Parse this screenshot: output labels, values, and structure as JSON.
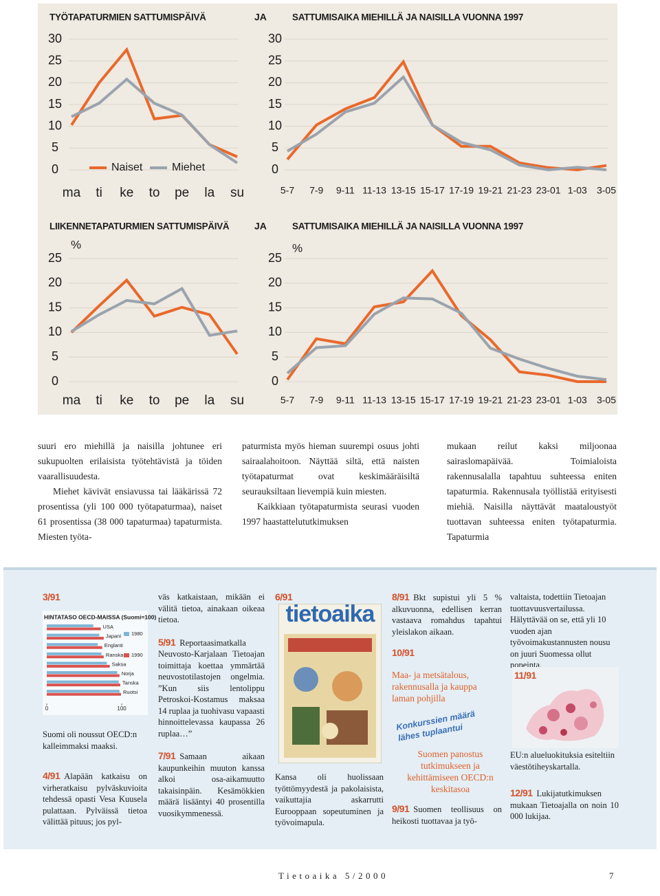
{
  "chart_data": [
    {
      "type": "line",
      "title": "TYÖTAPATURMIEN SATTUMISPÄIVÄ",
      "categories": [
        "ma",
        "ti",
        "ke",
        "to",
        "pe",
        "la",
        "su"
      ],
      "series": [
        {
          "name": "Naiset",
          "color": "#e8692c",
          "values": [
            10.3,
            20,
            27.6,
            11.7,
            12.5,
            5.8,
            3
          ]
        },
        {
          "name": "Miehet",
          "color": "#9aa3ad",
          "values": [
            12.2,
            15.3,
            20.8,
            15.3,
            12.6,
            5.8,
            1.6
          ]
        }
      ],
      "ylim": [
        0,
        30
      ],
      "yticks": [
        0,
        5,
        10,
        15,
        20,
        25,
        30
      ],
      "grid": true,
      "legend": "bottom"
    },
    {
      "type": "line",
      "title": "SATTUMISAIKA MIEHILLÄ JA NAISILLA VUONNA 1997",
      "categories": [
        "5-7",
        "7-9",
        "9-11",
        "11-13",
        "13-15",
        "15-17",
        "17-19",
        "19-21",
        "21-23",
        "23-01",
        "1-03",
        "3-05"
      ],
      "series": [
        {
          "color": "#e8692c",
          "values": [
            2.4,
            10.3,
            14,
            16.6,
            24.8,
            10.3,
            5.4,
            5.4,
            1.6,
            0.5,
            0,
            1
          ]
        },
        {
          "color": "#9aa3ad",
          "values": [
            4.3,
            8.2,
            13.3,
            15.3,
            21.3,
            10.3,
            6.3,
            4.6,
            1.1,
            0,
            0.6,
            0
          ]
        }
      ],
      "ylim": [
        0,
        30
      ],
      "yticks": [
        0,
        5,
        10,
        15,
        20,
        25,
        30
      ],
      "grid": true
    },
    {
      "type": "line",
      "title": "LIIKENNETAPATURMIEN SATTUMISPÄIVÄ",
      "unit": "%",
      "categories": [
        "ma",
        "ti",
        "ke",
        "to",
        "pe",
        "la",
        "su"
      ],
      "series": [
        {
          "color": "#e8692c",
          "values": [
            10,
            15.4,
            20.6,
            13.3,
            15.1,
            13.6,
            5.6
          ]
        },
        {
          "color": "#9aa3ad",
          "values": [
            10.2,
            13.6,
            16.5,
            15.8,
            18.9,
            9.4,
            10.3
          ]
        }
      ],
      "ylim": [
        0,
        25
      ],
      "yticks": [
        0,
        5,
        10,
        15,
        20,
        25
      ],
      "grid": true
    },
    {
      "type": "line",
      "title": "SATTUMISAIKA MIEHILLÄ JA NAISILLA VUONNA 1997",
      "unit": "%",
      "categories": [
        "5-7",
        "7-9",
        "9-11",
        "11-13",
        "13-15",
        "15-17",
        "17-19",
        "19-21",
        "21-23",
        "23-01",
        "1-03",
        "3-05"
      ],
      "series": [
        {
          "color": "#e8692c",
          "values": [
            0.4,
            8.7,
            7.7,
            15.2,
            16.2,
            22.5,
            13.4,
            8.5,
            2,
            1.3,
            0,
            0
          ]
        },
        {
          "color": "#9aa3ad",
          "values": [
            1.7,
            6.9,
            7.3,
            13.7,
            17,
            16.8,
            13.9,
            6.8,
            4.6,
            2.7,
            1.1,
            0.4
          ]
        }
      ],
      "ylim": [
        0,
        25
      ],
      "yticks": [
        0,
        5,
        10,
        15,
        20,
        25
      ],
      "grid": true
    },
    {
      "type": "bar",
      "orientation": "horizontal",
      "title": "HINTATASO OECD-MAISSA (Suomi=100)",
      "categories": [
        "USA",
        "Japani",
        "Englanti",
        "Ranska",
        "Saksa",
        "Norja",
        "Tanska",
        "Ruotsi"
      ],
      "series": [
        {
          "name": "1980",
          "color": "#7fb6d8",
          "values": [
            62,
            70,
            68,
            73,
            80,
            94,
            96,
            97
          ]
        },
        {
          "name": "1990",
          "color": "#d9534f",
          "values": [
            72,
            76,
            74,
            76,
            84,
            97,
            98,
            99
          ]
        }
      ],
      "xlim": [
        0,
        110
      ],
      "xticks": [
        0,
        100
      ]
    }
  ],
  "connectors": [
    "JA",
    "JA"
  ],
  "article": {
    "columns": [
      [
        "suuri ero miehillä ja naisilla johtunee eri sukupuolten erilaisista työtehtävistä ja töiden vaarallisuudesta.",
        "Miehet kävivät ensiavussa tai lääkärissä 72 prosentissa (yli 100 000 työtapaturmaa), naiset 61 prosentissa (38 000 tapaturmaa) tapaturmista. Miesten työta-"
      ],
      [
        "paturmista myös hieman suurempi osuus johti sairaalahoitoon. Näyttää siltä, että naisten työtapaturmat ovat keskimääräisiltä seurauksiltaan lievempiä kuin miesten.",
        "Kaikkiaan työtapaturmista seurasi vuoden 1997 haastattelututkimuksen"
      ],
      [
        "mukaan reilut kaksi miljoonaa sairaslomapäivää. Toimialoista rakennusalalla tapahtuu suhteessa eniten tapaturmia. Rakennusala työllistää erityisesti miehiä. Naisilla näyttävät maataloustyöt tuottavan suhteessa eniten työtapaturmia. Tapaturmia"
      ]
    ]
  },
  "sidebar": {
    "items": [
      {
        "label": "3/91",
        "text": "Suomi oli noussut OECD:n kalleimmaksi maaksi."
      },
      {
        "label": "4/91",
        "text": "Alapään katkaisu on virheratkaisu pylväskuvioita tehdessä opasti Vesa Kuusela pulattaan. Pylväissä tietoa välittää pituus; jos pyl-"
      },
      {
        "text": "väs katkaistaan, mikään ei välitä tietoa, ainakaan oikeaa tietoa."
      },
      {
        "label": "5/91",
        "text": "Reportaasimatkalla Neuvosto-Karjalaan Tietoajan toimittaja koettaa ymmärtää neuvostotilastojen ongelmia. ”Kun siis lentolippu Petroskoi-Kostamus maksaa 14 ruplaa ja tuohivasu vapaasti hinnoittelevassa kaupassa 26 ruplaa…”"
      },
      {
        "label": "7/91",
        "text": "Samaan aikaan kaupunkeihin muuton kanssa alkoi osa-aikamuutto takaisinpäin. Kesämökkien määrä lisääntyi 40 prosentilla vuosikymmenessä."
      },
      {
        "label": "6/91",
        "cover_title": "tietoaika",
        "text": "Kansa oli huolissaan työttömyydestä ja pakolaisista, vaikuttajia askarrutti Eurooppaan sopeutuminen ja työvoimapula."
      },
      {
        "label": "8/91",
        "text": "Bkt supistui yli 5 % alkuvuonna, edellisen kerran vastaava romahdus tapahtui yleislakon aikaan."
      },
      {
        "label": "10/91",
        "headline": "Maa- ja metsätalous, rakennusalla ja kauppa laman pohjilla",
        "stamp": [
          "Konkurssien määrä",
          "lähes tuplaantui"
        ],
        "note": "Suomen panostus tutkimukseen ja kehittämiseen OECD:n keskitasoa"
      },
      {
        "label": "9/91",
        "text": "Suomen teollisuus on heikosti tuottavaa ja työ-"
      },
      {
        "text": "valtaista, todettiin Tietoajan tuottavuusvertailussa. Hälyttävää on se, että yli 10 vuoden ajan työvoimakustannusten nousu on juuri Suomessa ollut nopeinta."
      },
      {
        "label": "11/91",
        "text": "EU:n alueluokituksia esiteltiin väestötiheyskartalla."
      },
      {
        "label": "12/91",
        "text": "Lukijatutkimuksen mukaan Tietoajalla on noin 10 000 lukijaa."
      }
    ]
  },
  "footer": {
    "magazine": "Tietoaika 5/2000",
    "page": "7"
  }
}
